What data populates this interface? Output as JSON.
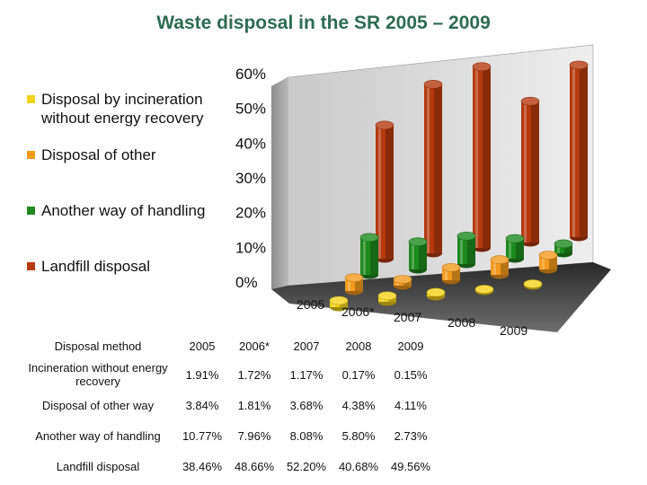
{
  "title": "Waste disposal in the SR 2005 – 2009",
  "legend": [
    {
      "label": "Disposal by incineration without energy recovery",
      "color": "#f2d21a"
    },
    {
      "label": "Disposal of other",
      "color": "#f39a1c"
    },
    {
      "label": "Another way of handling",
      "color": "#1e8a1e"
    },
    {
      "label": "Landfill disposal",
      "color": "#b53a10"
    }
  ],
  "chart_data": {
    "type": "bar",
    "title": "Waste disposal in the SR 2005 – 2009",
    "categories": [
      "2005",
      "2006*",
      "2007",
      "2008",
      "2009"
    ],
    "y_tick_labels": [
      "0%",
      "10%",
      "20%",
      "30%",
      "40%",
      "50%",
      "60%"
    ],
    "ylim": [
      0,
      60
    ],
    "series": [
      {
        "name": "Disposal by incineration without energy recovery",
        "values": [
          1.91,
          1.72,
          1.17,
          0.17,
          0.15
        ],
        "color": "#f2d21a"
      },
      {
        "name": "Disposal of other",
        "values": [
          3.84,
          1.81,
          3.68,
          4.38,
          4.11
        ],
        "color": "#f39a1c"
      },
      {
        "name": "Another way of handling",
        "values": [
          10.77,
          7.96,
          8.08,
          5.8,
          2.73
        ],
        "color": "#1e8a1e"
      },
      {
        "name": "Landfill disposal",
        "values": [
          38.46,
          48.66,
          52.2,
          40.68,
          49.56
        ],
        "color": "#b53a10"
      }
    ],
    "grid": false,
    "legend_position": "left",
    "style": "3d-cylinders"
  },
  "table": {
    "header": [
      "Disposal method",
      "2005",
      "2006*",
      "2007",
      "2008",
      "2009"
    ],
    "rows": [
      [
        "Incineration without energy recovery",
        "1.91%",
        "1.72%",
        "1.17%",
        "0.17%",
        "0.15%"
      ],
      [
        "Disposal of other way",
        "3.84%",
        "1.81%",
        "3.68%",
        "4.38%",
        "4.11%"
      ],
      [
        "Another way of handling",
        "10.77%",
        "7.96%",
        "8.08%",
        "5.80%",
        "2.73%"
      ],
      [
        "Landfill disposal",
        "38.46%",
        "48.66%",
        "52.20%",
        "40.68%",
        "49.56%"
      ]
    ]
  }
}
